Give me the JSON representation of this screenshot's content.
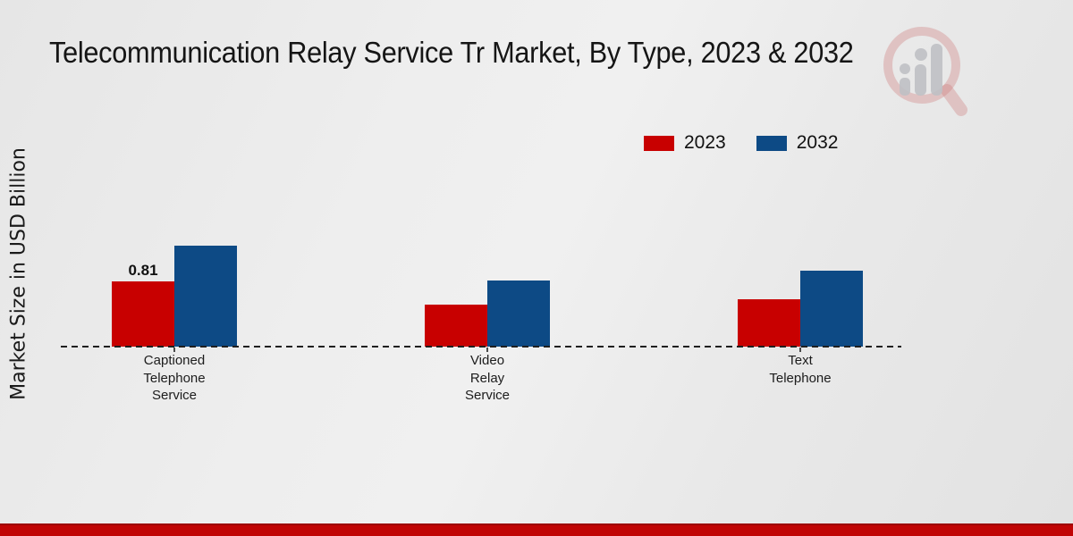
{
  "title": "Telecommunication Relay Service Tr Market, By Type, 2023 & 2032",
  "ylabel": "Market Size in USD Billion",
  "legend": {
    "items": [
      {
        "label": "2023",
        "color": "#c80000"
      },
      {
        "label": "2032",
        "color": "#0d4a85"
      }
    ]
  },
  "chart_data": {
    "type": "bar",
    "title": "Telecommunication Relay Service Tr Market, By Type, 2023 & 2032",
    "xlabel": "",
    "ylabel": "Market Size in USD Billion",
    "categories": [
      "Captioned Telephone Service",
      "Video Relay Service",
      "Text Telephone"
    ],
    "category_label_lines": [
      "Captioned\nTelephone\nService",
      "Video\nRelay\nService",
      "Text\nTelephone"
    ],
    "series": [
      {
        "name": "2023",
        "color": "#c80000",
        "values": [
          0.81,
          0.52,
          0.59
        ]
      },
      {
        "name": "2032",
        "color": "#0d4a85",
        "values": [
          1.25,
          0.82,
          0.94
        ]
      }
    ],
    "value_labels": [
      {
        "series_index": 0,
        "category_index": 0,
        "text": "0.81"
      }
    ],
    "ylim": [
      0,
      1.4
    ],
    "grid": false,
    "baseline_style": "dashed",
    "legend_position": "top-right"
  },
  "branding": {
    "logo_icon": "magnifier-bar-chart-logo",
    "footer_bar_color": "#c00505"
  }
}
